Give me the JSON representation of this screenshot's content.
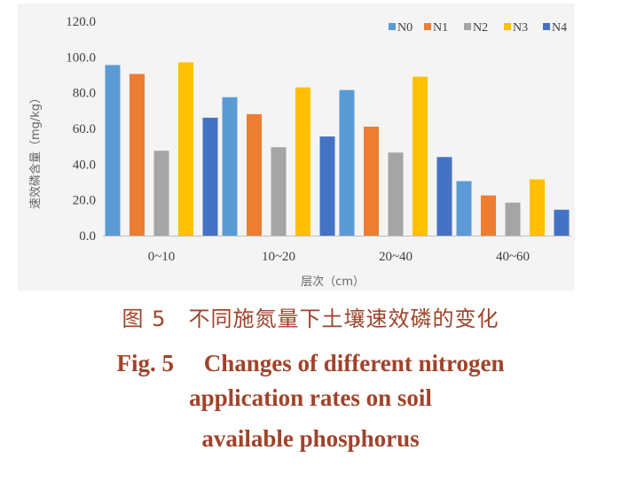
{
  "chart_data": {
    "type": "bar",
    "categories": [
      "0~10",
      "10~20",
      "20~40",
      "40~60"
    ],
    "series": [
      {
        "name": "N0",
        "color": "#5b9bd5",
        "values": [
          95.5,
          77.5,
          81.5,
          30.5
        ]
      },
      {
        "name": "N1",
        "color": "#ed7d31",
        "values": [
          90.5,
          68.0,
          61.0,
          22.5
        ]
      },
      {
        "name": "N2",
        "color": "#a5a5a5",
        "values": [
          47.5,
          49.5,
          46.5,
          18.5
        ]
      },
      {
        "name": "N3",
        "color": "#ffc000",
        "values": [
          97.0,
          83.0,
          89.0,
          31.5
        ]
      },
      {
        "name": "N4",
        "color": "#4472c4",
        "values": [
          66.0,
          55.5,
          44.0,
          14.5
        ]
      }
    ],
    "ylim": [
      0,
      120
    ],
    "yticks": [
      "0.0",
      "20.0",
      "40.0",
      "60.0",
      "80.0",
      "100.0",
      "120.0"
    ],
    "xlabel": "层次（cm）",
    "ylabel": "速效磷含量（mg/kg）",
    "legend_position": "top-right",
    "grid": false
  },
  "caption": {
    "cn": "图 5　不同施氮量下土壤速效磷的变化",
    "en_line1": "Fig. 5　 Changes of different nitrogen",
    "en_line2": "application rates on soil",
    "en_line3": "available phosphorus"
  }
}
